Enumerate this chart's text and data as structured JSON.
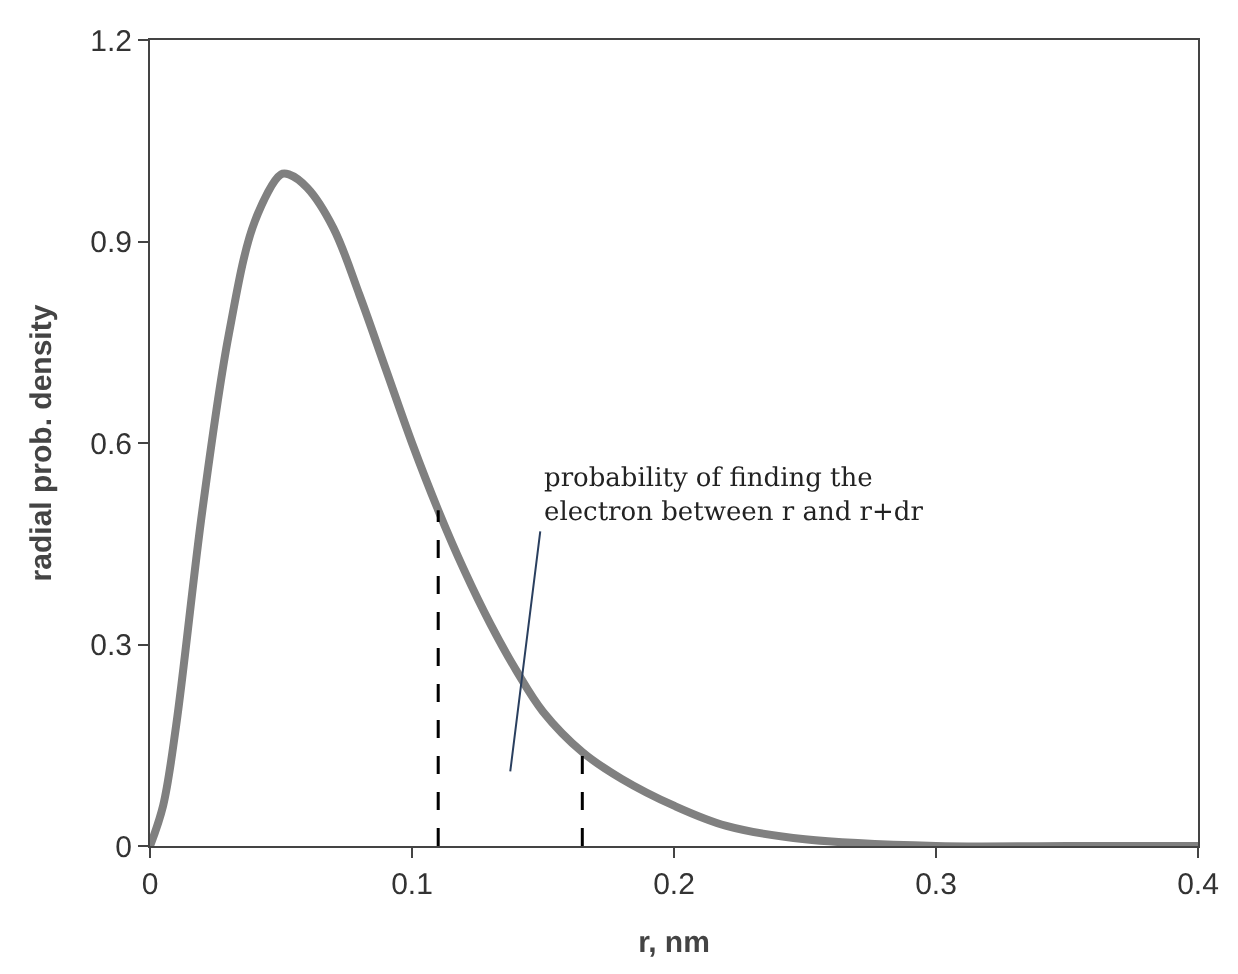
{
  "chart_data": {
    "type": "line",
    "xlabel": "r, nm",
    "ylabel": "radial prob. density",
    "x": [
      0,
      0.005,
      0.01,
      0.02,
      0.03,
      0.04,
      0.05,
      0.053,
      0.06,
      0.07,
      0.08,
      0.09,
      0.1,
      0.11,
      0.12,
      0.13,
      0.14,
      0.15,
      0.165,
      0.18,
      0.2,
      0.22,
      0.25,
      0.3,
      0.35,
      0.4
    ],
    "series": [
      {
        "color": "#808080",
        "values": [
          0,
          0.06,
          0.18,
          0.5,
          0.76,
          0.93,
          1.0,
          1.0,
          0.98,
          0.92,
          0.82,
          0.71,
          0.6,
          0.5,
          0.41,
          0.33,
          0.26,
          0.2,
          0.14,
          0.1,
          0.06,
          0.03,
          0.01,
          0,
          0,
          0
        ]
      }
    ],
    "xlim": [
      0,
      0.4
    ],
    "xticks": [
      0,
      0.1,
      0.2,
      0.3,
      0.4
    ],
    "ylim": [
      0,
      1.2
    ],
    "yticks": [
      0,
      0.3,
      0.6,
      0.9,
      1.2
    ],
    "marker": "none",
    "line_style": "solid",
    "ref_lines": [
      {
        "axis": "x",
        "value": 0.11,
        "line_style": "dashed",
        "color": "#000000"
      },
      {
        "axis": "x",
        "value": 0.165,
        "line_style": "dashed",
        "color": "#000000"
      }
    ],
    "annotations": [
      "probability of finding the\nelectron between r and r+dr"
    ]
  }
}
